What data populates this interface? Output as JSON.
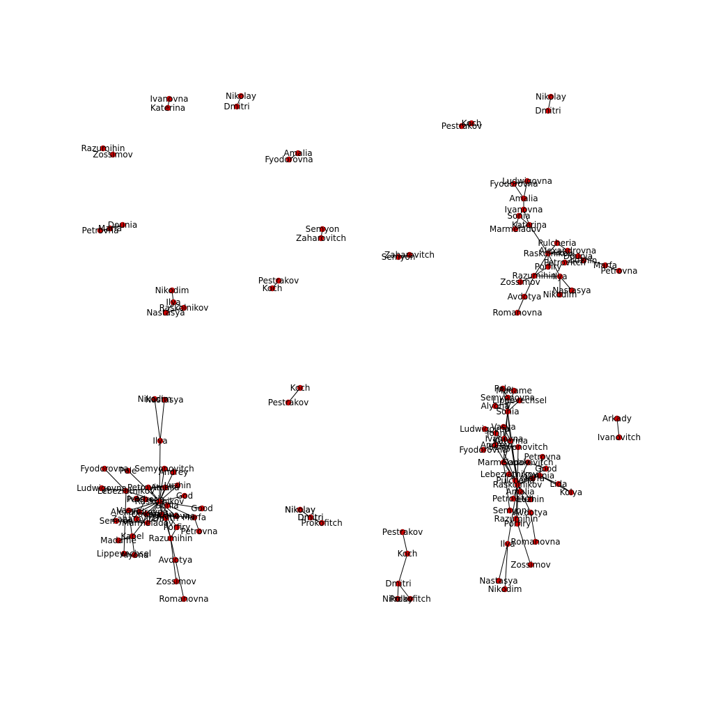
{
  "colors": {
    "node": "#cc0000",
    "edge": "#000000",
    "label": "#000000"
  },
  "panels": [
    {
      "id": "pairs-a",
      "nodes": [
        {
          "id": "a1",
          "label": "Ivanovna"
        },
        {
          "id": "a2",
          "label": "Katerina"
        },
        {
          "id": "a3",
          "label": "Nikolay"
        },
        {
          "id": "a4",
          "label": "Dmitri"
        },
        {
          "id": "a5",
          "label": "Razumihin"
        },
        {
          "id": "a6",
          "label": "Zossimov"
        },
        {
          "id": "a7",
          "label": "Amalia"
        },
        {
          "id": "a8",
          "label": "Fyodorovna"
        },
        {
          "id": "a9",
          "label": "Dounia"
        },
        {
          "id": "a10",
          "label": "Marfa"
        },
        {
          "id": "a11",
          "label": "Petrovna"
        },
        {
          "id": "a12",
          "label": "Semyon"
        },
        {
          "id": "a13",
          "label": "Zaharovitch"
        },
        {
          "id": "a14",
          "label": "Nikodim"
        },
        {
          "id": "a15",
          "label": "Ilya"
        },
        {
          "id": "a16",
          "label": "Raskolnikov"
        },
        {
          "id": "a17",
          "label": "Nastasya"
        },
        {
          "id": "a18",
          "label": "Pestrakov"
        },
        {
          "id": "a19",
          "label": "Koch"
        }
      ],
      "edges": [
        [
          "a1",
          "a2"
        ],
        [
          "a3",
          "a4"
        ],
        [
          "a5",
          "a6"
        ],
        [
          "a7",
          "a8"
        ],
        [
          "a9",
          "a10"
        ],
        [
          "a10",
          "a11"
        ],
        [
          "a12",
          "a13"
        ],
        [
          "a14",
          "a15"
        ],
        [
          "a15",
          "a16"
        ],
        [
          "a15",
          "a17"
        ],
        [
          "a16",
          "a17"
        ],
        [
          "a18",
          "a19"
        ]
      ]
    },
    {
      "id": "pairs-b",
      "nodes": [
        {
          "id": "b1",
          "label": "Zaharovitch"
        },
        {
          "id": "b2",
          "label": "Semyon"
        },
        {
          "id": "b3",
          "label": "Koch"
        },
        {
          "id": "b4",
          "label": "Pestrakov"
        },
        {
          "id": "b5",
          "label": "Nikolay"
        },
        {
          "id": "b6",
          "label": "Dmitri"
        }
      ],
      "edges": [
        [
          "b1",
          "b2"
        ],
        [
          "b3",
          "b4"
        ],
        [
          "b5",
          "b6"
        ]
      ]
    },
    {
      "id": "cluster-c",
      "nodes": [
        {
          "id": "c1",
          "label": "Ludwigovna"
        },
        {
          "id": "c2",
          "label": "Fyodorovna"
        },
        {
          "id": "c3",
          "label": "Amalia"
        },
        {
          "id": "c4",
          "label": "Ivanovna"
        },
        {
          "id": "c5",
          "label": "Sonia"
        },
        {
          "id": "c6",
          "label": "Katerina"
        },
        {
          "id": "c7",
          "label": "Marmeladov"
        },
        {
          "id": "c8",
          "label": "Pulcheria"
        },
        {
          "id": "c9",
          "label": "Raskolnikov"
        },
        {
          "id": "c10",
          "label": "Alexandrovna"
        },
        {
          "id": "c11",
          "label": "Dounia"
        },
        {
          "id": "c12",
          "label": "Petrovitch"
        },
        {
          "id": "c13",
          "label": "Marfa"
        },
        {
          "id": "c14",
          "label": "Petrovna"
        },
        {
          "id": "c15",
          "label": "Porfiry"
        },
        {
          "id": "c16",
          "label": "Razumihin"
        },
        {
          "id": "c17",
          "label": "Ilya"
        },
        {
          "id": "c18",
          "label": "Zossimov"
        },
        {
          "id": "c19",
          "label": "Nastasya"
        },
        {
          "id": "c20",
          "label": "Nikodim"
        },
        {
          "id": "c21",
          "label": "Avdotya"
        },
        {
          "id": "c22",
          "label": "Romanovna"
        },
        {
          "id": "c23",
          "label": "Luzhin"
        }
      ],
      "edges": [
        [
          "c1",
          "c2"
        ],
        [
          "c1",
          "c3"
        ],
        [
          "c2",
          "c3"
        ],
        [
          "c3",
          "c4"
        ],
        [
          "c4",
          "c5"
        ],
        [
          "c4",
          "c6"
        ],
        [
          "c5",
          "c6"
        ],
        [
          "c5",
          "c7"
        ],
        [
          "c6",
          "c7"
        ],
        [
          "c6",
          "c9"
        ],
        [
          "c8",
          "c9"
        ],
        [
          "c8",
          "c10"
        ],
        [
          "c9",
          "c10"
        ],
        [
          "c9",
          "c11"
        ],
        [
          "c9",
          "c15"
        ],
        [
          "c9",
          "c16"
        ],
        [
          "c10",
          "c11"
        ],
        [
          "c11",
          "c12"
        ],
        [
          "c11",
          "c13"
        ],
        [
          "c13",
          "c14"
        ],
        [
          "c12",
          "c23"
        ],
        [
          "c15",
          "c16"
        ],
        [
          "c16",
          "c17"
        ],
        [
          "c16",
          "c18"
        ],
        [
          "c17",
          "c19"
        ],
        [
          "c17",
          "c20"
        ],
        [
          "c16",
          "c21"
        ],
        [
          "c21",
          "c22"
        ],
        [
          "c11",
          "c23"
        ],
        [
          "c9",
          "c17"
        ]
      ]
    },
    {
      "id": "pairs-d",
      "nodes": [
        {
          "id": "d1",
          "label": "Koch"
        },
        {
          "id": "d2",
          "label": "Pestrakov"
        },
        {
          "id": "d3",
          "label": "Nikolay"
        },
        {
          "id": "d4",
          "label": "Dmitri"
        }
      ],
      "edges": [
        [
          "d1",
          "d2"
        ],
        [
          "d3",
          "d4"
        ]
      ]
    },
    {
      "id": "cluster-e",
      "nodes": [
        {
          "id": "e1",
          "label": "Nikodim"
        },
        {
          "id": "e2",
          "label": "Nastasya"
        },
        {
          "id": "e3",
          "label": "Ilya"
        },
        {
          "id": "e4",
          "label": "Fyodorovna"
        },
        {
          "id": "e5",
          "label": "Pole"
        },
        {
          "id": "e6",
          "label": "Semyonovitch"
        },
        {
          "id": "e7",
          "label": "Andrey"
        },
        {
          "id": "e8",
          "label": "Ludwigovna"
        },
        {
          "id": "e9",
          "label": "Lebeziatnikov"
        },
        {
          "id": "e10",
          "label": "Petrovitch"
        },
        {
          "id": "e11",
          "label": "Luzhin"
        },
        {
          "id": "e12",
          "label": "Amalia"
        },
        {
          "id": "e13",
          "label": "God"
        },
        {
          "id": "e14",
          "label": "Raskolnikov"
        },
        {
          "id": "e15",
          "label": "Sonia"
        },
        {
          "id": "e16",
          "label": "Good"
        },
        {
          "id": "e17",
          "label": "Ivanovna"
        },
        {
          "id": "e18",
          "label": "Dounia"
        },
        {
          "id": "e19",
          "label": "Katerina"
        },
        {
          "id": "e20",
          "label": "Marfa"
        },
        {
          "id": "e21",
          "label": "Semyon"
        },
        {
          "id": "e22",
          "label": "Zaharovitch"
        },
        {
          "id": "e23",
          "label": "Marmeladov"
        },
        {
          "id": "e24",
          "label": "Porfiry"
        },
        {
          "id": "e25",
          "label": "Petrovna"
        },
        {
          "id": "e26",
          "label": "Razumihin"
        },
        {
          "id": "e27",
          "label": "Kapel"
        },
        {
          "id": "e28",
          "label": "Madame"
        },
        {
          "id": "e29",
          "label": "Lippevechsel"
        },
        {
          "id": "e30",
          "label": "Alyona"
        },
        {
          "id": "e31",
          "label": "Avdotya"
        },
        {
          "id": "e32",
          "label": "Zossimov"
        },
        {
          "id": "e33",
          "label": "Romanovna"
        },
        {
          "id": "e34",
          "label": "Vasya"
        },
        {
          "id": "e35",
          "label": "Alexandrovna"
        },
        {
          "id": "e36",
          "label": "Pulcheria"
        },
        {
          "id": "e37",
          "label": "Dmitri"
        },
        {
          "id": "e38",
          "label": "Ivan"
        }
      ],
      "edges": [
        [
          "e1",
          "e3"
        ],
        [
          "e2",
          "e3"
        ],
        [
          "e3",
          "e14"
        ],
        [
          "e4",
          "e9"
        ],
        [
          "e5",
          "e14"
        ],
        [
          "e6",
          "e14"
        ],
        [
          "e7",
          "e14"
        ],
        [
          "e8",
          "e9"
        ],
        [
          "e9",
          "e14"
        ],
        [
          "e10",
          "e14"
        ],
        [
          "e11",
          "e14"
        ],
        [
          "e12",
          "e14"
        ],
        [
          "e13",
          "e14"
        ],
        [
          "e14",
          "e15"
        ],
        [
          "e14",
          "e16"
        ],
        [
          "e14",
          "e17"
        ],
        [
          "e14",
          "e18"
        ],
        [
          "e14",
          "e19"
        ],
        [
          "e14",
          "e20"
        ],
        [
          "e14",
          "e23"
        ],
        [
          "e14",
          "e24"
        ],
        [
          "e14",
          "e26"
        ],
        [
          "e14",
          "e35"
        ],
        [
          "e14",
          "e36"
        ],
        [
          "e15",
          "e19"
        ],
        [
          "e17",
          "e19"
        ],
        [
          "e18",
          "e20"
        ],
        [
          "e20",
          "e25"
        ],
        [
          "e21",
          "e23"
        ],
        [
          "e22",
          "e23"
        ],
        [
          "e23",
          "e19"
        ],
        [
          "e24",
          "e26"
        ],
        [
          "e26",
          "e31"
        ],
        [
          "e26",
          "e32"
        ],
        [
          "e31",
          "e33"
        ],
        [
          "e27",
          "e28"
        ],
        [
          "e27",
          "e14"
        ],
        [
          "e29",
          "e30"
        ],
        [
          "e29",
          "e9"
        ],
        [
          "e30",
          "e34"
        ],
        [
          "e34",
          "e14"
        ],
        [
          "e37",
          "e26"
        ],
        [
          "e38",
          "e14"
        ],
        [
          "e9",
          "e11"
        ],
        [
          "e10",
          "e11"
        ],
        [
          "e6",
          "e7"
        ],
        [
          "e35",
          "e36"
        ],
        [
          "e18",
          "e35"
        ]
      ]
    },
    {
      "id": "pairs-f",
      "nodes": [
        {
          "id": "f1",
          "label": "Nikolay"
        },
        {
          "id": "f2",
          "label": "Dmitri"
        },
        {
          "id": "f3",
          "label": "Prokofitch"
        }
      ],
      "edges": [
        [
          "f1",
          "f2"
        ],
        [
          "f2",
          "f3"
        ]
      ]
    },
    {
      "id": "chain-g",
      "nodes": [
        {
          "id": "g1",
          "label": "Pestrakov"
        },
        {
          "id": "g2",
          "label": "Koch"
        },
        {
          "id": "g3",
          "label": "Dmitri"
        },
        {
          "id": "g4",
          "label": "Nikolay"
        },
        {
          "id": "g5",
          "label": "Prokofitch"
        }
      ],
      "edges": [
        [
          "g1",
          "g2"
        ],
        [
          "g2",
          "g3"
        ],
        [
          "g3",
          "g4"
        ],
        [
          "g3",
          "g5"
        ]
      ]
    },
    {
      "id": "cluster-h",
      "nodes": [
        {
          "id": "h1",
          "label": "Pole"
        },
        {
          "id": "h2",
          "label": "Madame"
        },
        {
          "id": "h3",
          "label": "Semyonovna"
        },
        {
          "id": "h4",
          "label": "Lippevechsel"
        },
        {
          "id": "h5",
          "label": "Alyona"
        },
        {
          "id": "h6",
          "label": "Sonia"
        },
        {
          "id": "h7",
          "label": "Ludwigovna"
        },
        {
          "id": "h8",
          "label": "Vasya"
        },
        {
          "id": "h9",
          "label": "John"
        },
        {
          "id": "h10",
          "label": "Ivanovna"
        },
        {
          "id": "h11",
          "label": "Katerina"
        },
        {
          "id": "h12",
          "label": "Andrey"
        },
        {
          "id": "h13",
          "label": "Semyonovitch"
        },
        {
          "id": "h14",
          "label": "Fyodorovna"
        },
        {
          "id": "h15",
          "label": "Petrovna"
        },
        {
          "id": "h16",
          "label": "Marmeladov"
        },
        {
          "id": "h17",
          "label": "Sobakevitch"
        },
        {
          "id": "h18",
          "label": "Good"
        },
        {
          "id": "h19",
          "label": "Lebeziatnikov"
        },
        {
          "id": "h20",
          "label": "Dounia"
        },
        {
          "id": "h21",
          "label": "Lida"
        },
        {
          "id": "h22",
          "label": "Kolya"
        },
        {
          "id": "h23",
          "label": "Raskolnikov"
        },
        {
          "id": "h24",
          "label": "Petrovitch"
        },
        {
          "id": "h25",
          "label": "Luzhin"
        },
        {
          "id": "h26",
          "label": "Avdotya"
        },
        {
          "id": "h27",
          "label": "Semyon"
        },
        {
          "id": "h28",
          "label": "Razumihin"
        },
        {
          "id": "h29",
          "label": "Porfiry"
        },
        {
          "id": "h30",
          "label": "Ilya"
        },
        {
          "id": "h31",
          "label": "Romanovna"
        },
        {
          "id": "h32",
          "label": "Zossimov"
        },
        {
          "id": "h33",
          "label": "Nastasya"
        },
        {
          "id": "h34",
          "label": "Nikodim"
        },
        {
          "id": "h35",
          "label": "Amalia"
        },
        {
          "id": "h36",
          "label": "Marfa"
        },
        {
          "id": "h37",
          "label": "Pulcheria"
        }
      ],
      "edges": [
        [
          "h1",
          "h6"
        ],
        [
          "h2",
          "h6"
        ],
        [
          "h3",
          "h6"
        ],
        [
          "h4",
          "h6"
        ],
        [
          "h5",
          "h6"
        ],
        [
          "h6",
          "h10"
        ],
        [
          "h6",
          "h11"
        ],
        [
          "h6",
          "h16"
        ],
        [
          "h6",
          "h23"
        ],
        [
          "h7",
          "h10"
        ],
        [
          "h8",
          "h11"
        ],
        [
          "h9",
          "h23"
        ],
        [
          "h10",
          "h11"
        ],
        [
          "h11",
          "h16"
        ],
        [
          "h11",
          "h23"
        ],
        [
          "h12",
          "h13"
        ],
        [
          "h12",
          "h23"
        ],
        [
          "h13",
          "h23"
        ],
        [
          "h14",
          "h10"
        ],
        [
          "h15",
          "h20"
        ],
        [
          "h16",
          "h23"
        ],
        [
          "h17",
          "h23"
        ],
        [
          "h18",
          "h23"
        ],
        [
          "h19",
          "h23"
        ],
        [
          "h20",
          "h23"
        ],
        [
          "h20",
          "h21"
        ],
        [
          "h21",
          "h22"
        ],
        [
          "h22",
          "h20"
        ],
        [
          "h23",
          "h24"
        ],
        [
          "h23",
          "h25"
        ],
        [
          "h23",
          "h26"
        ],
        [
          "h23",
          "h28"
        ],
        [
          "h23",
          "h29"
        ],
        [
          "h23",
          "h30"
        ],
        [
          "h24",
          "h25"
        ],
        [
          "h26",
          "h31"
        ],
        [
          "h27",
          "h16"
        ],
        [
          "h28",
          "h29"
        ],
        [
          "h28",
          "h32"
        ],
        [
          "h30",
          "h33"
        ],
        [
          "h30",
          "h34"
        ],
        [
          "h35",
          "h11"
        ],
        [
          "h36",
          "h20"
        ],
        [
          "h37",
          "h23"
        ],
        [
          "h5",
          "h4"
        ],
        [
          "h3",
          "h1"
        ],
        [
          "h2",
          "h1"
        ],
        [
          "h18",
          "h17"
        ]
      ]
    },
    {
      "id": "pairs-i",
      "nodes": [
        {
          "id": "i1",
          "label": "Arkady"
        },
        {
          "id": "i2",
          "label": "Ivanovitch"
        }
      ],
      "edges": [
        [
          "i1",
          "i2"
        ]
      ]
    }
  ]
}
